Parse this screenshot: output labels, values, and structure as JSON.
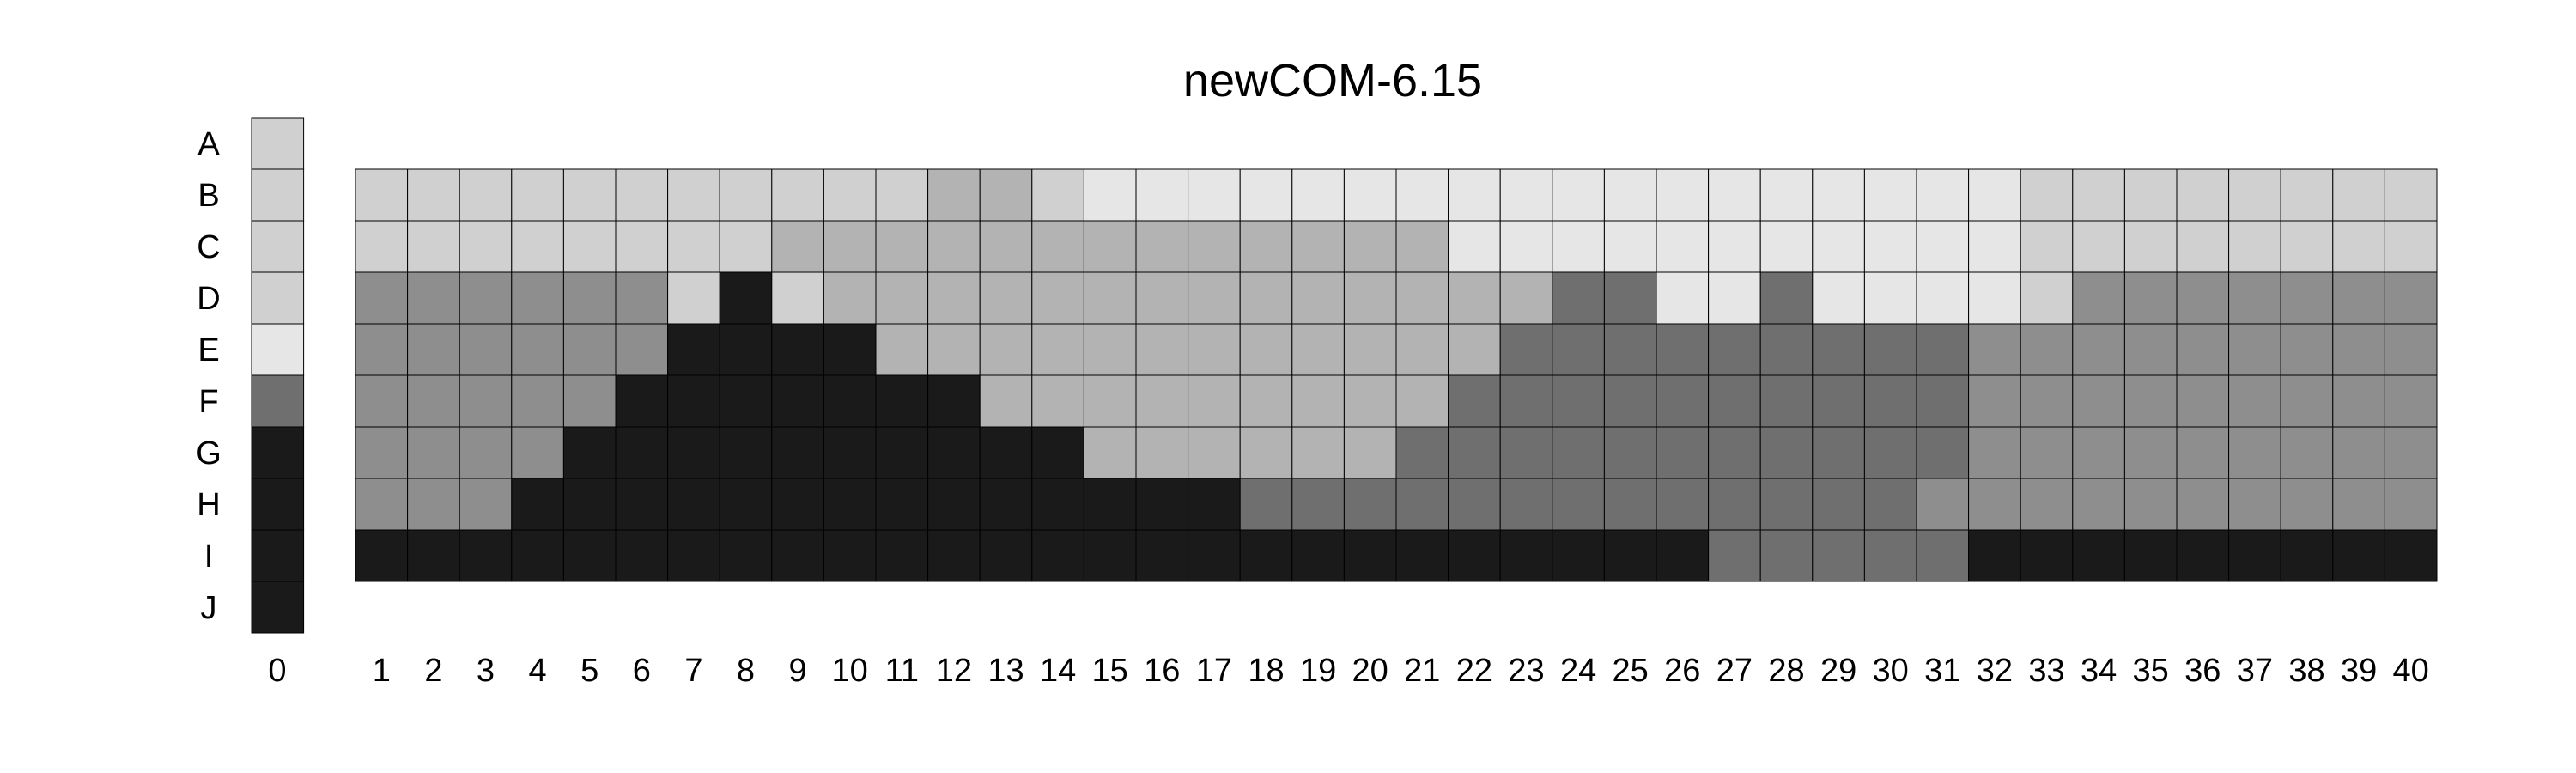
{
  "chart_data": {
    "type": "heatmap",
    "title": "newCOM-6.15",
    "xlabel": "",
    "ylabel": "",
    "rows": [
      "A",
      "B",
      "C",
      "D",
      "E",
      "F",
      "G",
      "H",
      "I",
      "J"
    ],
    "reference_label": "0",
    "reference_column": [
      "L",
      "L",
      "L",
      "L",
      "V",
      "M",
      "K",
      "K",
      "K",
      "K"
    ],
    "columns": [
      "1",
      "2",
      "3",
      "4",
      "5",
      "6",
      "7",
      "8",
      "9",
      "10",
      "11",
      "12",
      "13",
      "14",
      "15",
      "16",
      "17",
      "18",
      "19",
      "20",
      "21",
      "22",
      "23",
      "24",
      "25",
      "26",
      "27",
      "28",
      "29",
      "30",
      "31",
      "32",
      "33",
      "34",
      "35",
      "36",
      "37",
      "38",
      "39",
      "40"
    ],
    "grid_rows": [
      "B",
      "C",
      "D",
      "E",
      "F",
      "G",
      "H",
      "I"
    ],
    "matrix": [
      [
        "L",
        "L",
        "L",
        "L",
        "L",
        "L",
        "L",
        "L",
        "L",
        "L",
        "L",
        "S",
        "S",
        "L",
        "V",
        "V",
        "V",
        "V",
        "V",
        "V",
        "V",
        "V",
        "V",
        "V",
        "V",
        "V",
        "V",
        "V",
        "V",
        "V",
        "V",
        "V",
        "L",
        "L",
        "L",
        "L",
        "L",
        "L",
        "L",
        "L"
      ],
      [
        "L",
        "L",
        "L",
        "L",
        "L",
        "L",
        "L",
        "L",
        "S",
        "S",
        "S",
        "S",
        "S",
        "S",
        "S",
        "S",
        "S",
        "S",
        "S",
        "S",
        "S",
        "V",
        "V",
        "V",
        "V",
        "V",
        "V",
        "V",
        "V",
        "V",
        "V",
        "V",
        "L",
        "L",
        "L",
        "L",
        "L",
        "L",
        "L",
        "L"
      ],
      [
        "G",
        "G",
        "G",
        "G",
        "G",
        "G",
        "L",
        "K",
        "L",
        "S",
        "S",
        "S",
        "S",
        "S",
        "S",
        "S",
        "S",
        "S",
        "S",
        "S",
        "S",
        "S",
        "S",
        "M",
        "M",
        "V",
        "V",
        "M",
        "V",
        "V",
        "V",
        "V",
        "L",
        "G",
        "G",
        "G",
        "G",
        "G",
        "G",
        "G"
      ],
      [
        "G",
        "G",
        "G",
        "G",
        "G",
        "G",
        "K",
        "K",
        "K",
        "K",
        "S",
        "S",
        "S",
        "S",
        "S",
        "S",
        "S",
        "S",
        "S",
        "S",
        "S",
        "S",
        "M",
        "M",
        "M",
        "M",
        "M",
        "M",
        "M",
        "M",
        "M",
        "G",
        "G",
        "G",
        "G",
        "G",
        "G",
        "G",
        "G",
        "G"
      ],
      [
        "G",
        "G",
        "G",
        "G",
        "G",
        "K",
        "K",
        "K",
        "K",
        "K",
        "K",
        "K",
        "S",
        "S",
        "S",
        "S",
        "S",
        "S",
        "S",
        "S",
        "S",
        "M",
        "M",
        "M",
        "M",
        "M",
        "M",
        "M",
        "M",
        "M",
        "M",
        "G",
        "G",
        "G",
        "G",
        "G",
        "G",
        "G",
        "G",
        "G"
      ],
      [
        "G",
        "G",
        "G",
        "G",
        "K",
        "K",
        "K",
        "K",
        "K",
        "K",
        "K",
        "K",
        "K",
        "K",
        "S",
        "S",
        "S",
        "S",
        "S",
        "S",
        "M",
        "M",
        "M",
        "M",
        "M",
        "M",
        "M",
        "M",
        "M",
        "M",
        "M",
        "G",
        "G",
        "G",
        "G",
        "G",
        "G",
        "G",
        "G",
        "G"
      ],
      [
        "G",
        "G",
        "G",
        "K",
        "K",
        "K",
        "K",
        "K",
        "K",
        "K",
        "K",
        "K",
        "K",
        "K",
        "K",
        "K",
        "K",
        "M",
        "M",
        "M",
        "M",
        "M",
        "M",
        "M",
        "M",
        "M",
        "M",
        "M",
        "M",
        "M",
        "G",
        "G",
        "G",
        "G",
        "G",
        "G",
        "G",
        "G",
        "G",
        "G"
      ],
      [
        "K",
        "K",
        "K",
        "K",
        "K",
        "K",
        "K",
        "K",
        "K",
        "K",
        "K",
        "K",
        "K",
        "K",
        "K",
        "K",
        "K",
        "K",
        "K",
        "K",
        "K",
        "K",
        "K",
        "K",
        "K",
        "K",
        "M",
        "M",
        "M",
        "M",
        "M",
        "K",
        "K",
        "K",
        "K",
        "K",
        "K",
        "K",
        "K",
        "K"
      ]
    ],
    "colors": {
      "V": "#e6e6e6",
      "L": "#d0d0d0",
      "S": "#b3b3b3",
      "G": "#8e8e8e",
      "M": "#6f6f6f",
      "K": "#1a1a1a"
    }
  }
}
